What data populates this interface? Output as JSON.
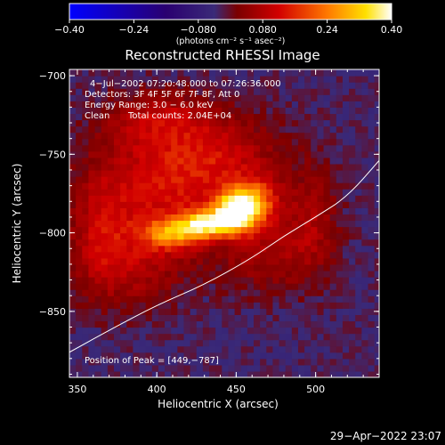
{
  "chart_data": {
    "type": "heatmap",
    "title": "Reconstructed RHESSI Image",
    "xlabel": "Heliocentric X (arcsec)",
    "ylabel": "Heliocentric Y (arcsec)",
    "xlim": [
      345,
      540
    ],
    "ylim": [
      -892,
      -696
    ],
    "x_ticks": [
      350,
      400,
      450,
      500
    ],
    "y_ticks": [
      -700,
      -750,
      -800,
      -850
    ],
    "x_tick_labels": [
      "350",
      "400",
      "450",
      "500"
    ],
    "y_tick_labels": [
      "−700",
      "−750",
      "−800",
      "−850"
    ],
    "grid": false,
    "colorbar": {
      "range": [
        -0.4,
        0.4
      ],
      "ticks": [
        -0.4,
        -0.24,
        -0.08,
        0.08,
        0.24,
        0.4
      ],
      "tick_labels": [
        "−0.40",
        "−0.24",
        "−0.080",
        "0.080",
        "0.24",
        "0.40"
      ],
      "unit_label": "(photons cm⁻² s⁻¹ asec⁻²)",
      "colormap": [
        "#0000ff",
        "#2a0070",
        "#3a2a78",
        "#7a0000",
        "#d20000",
        "#ff7800",
        "#ffe000",
        "#ffffff"
      ]
    },
    "annotations": {
      "time_range": "4−Jul−2002 07:20:48.000 to 07:26:36.000",
      "detectors": "Detectors: 3F 4F 5F 6F 7F 8F, Att 0",
      "energy": "Energy Range: 3.0 − 6.0 keV",
      "clean": "Clean",
      "total_counts": "Total counts: 2.04E+04",
      "peak": "Position of Peak = [449,−787]"
    },
    "peak_position": [
      449,
      -787
    ],
    "sources": [
      {
        "x": 449,
        "y": -787,
        "sx": 9,
        "sy": 9,
        "peak": 0.4
      },
      {
        "x": 430,
        "y": -794,
        "sx": 10,
        "sy": 6,
        "peak": 0.3
      },
      {
        "x": 410,
        "y": -800,
        "sx": 13,
        "sy": 7,
        "peak": 0.22
      },
      {
        "x": 462,
        "y": -780,
        "sx": 10,
        "sy": 10,
        "peak": 0.22
      },
      {
        "x": 400,
        "y": -770,
        "sx": 32,
        "sy": 28,
        "peak": 0.13
      },
      {
        "x": 440,
        "y": -752,
        "sx": 28,
        "sy": 20,
        "peak": 0.11
      },
      {
        "x": 400,
        "y": -727,
        "sx": 22,
        "sy": 12,
        "peak": 0.09
      },
      {
        "x": 470,
        "y": -812,
        "sx": 22,
        "sy": 18,
        "peak": 0.09
      },
      {
        "x": 380,
        "y": -820,
        "sx": 25,
        "sy": 20,
        "peak": 0.1
      },
      {
        "x": 365,
        "y": -795,
        "sx": 12,
        "sy": 25,
        "peak": 0.07
      },
      {
        "x": 498,
        "y": -790,
        "sx": 12,
        "sy": 25,
        "peak": 0.08
      }
    ],
    "limb": [
      [
        345,
        -876
      ],
      [
        370,
        -862
      ],
      [
        400,
        -846
      ],
      [
        430,
        -833
      ],
      [
        460,
        -816
      ],
      [
        480,
        -802
      ],
      [
        500,
        -790
      ],
      [
        520,
        -777
      ],
      [
        540,
        -754
      ]
    ]
  },
  "footer": {
    "timestamp": "29−Apr−2022 23:07"
  }
}
